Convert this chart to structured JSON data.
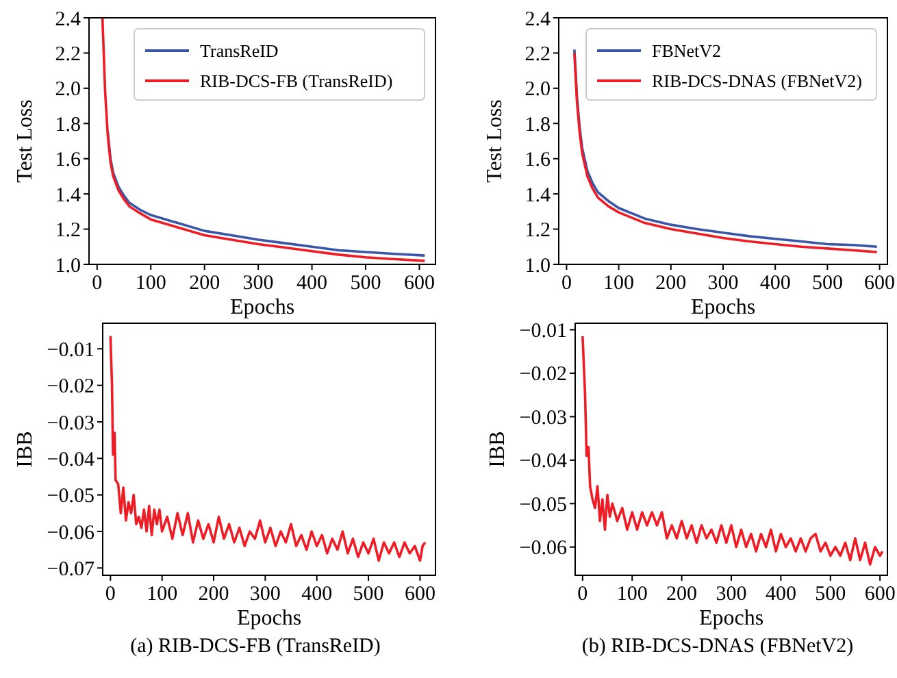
{
  "chart_data": [
    {
      "type": "line",
      "xlabel": "Epochs",
      "ylabel": "Test Loss",
      "xlim": [
        -15,
        630
      ],
      "ylim": [
        1.0,
        2.4
      ],
      "xticks": [
        0,
        100,
        200,
        300,
        400,
        500,
        600
      ],
      "yticks": [
        {
          "value": 1.0,
          "label": "1.0"
        },
        {
          "value": 1.2,
          "label": "1.2"
        },
        {
          "value": 1.4,
          "label": "1.4"
        },
        {
          "value": 1.6,
          "label": "1.6"
        },
        {
          "value": 1.8,
          "label": "1.8"
        },
        {
          "value": 2.0,
          "label": "2.0"
        },
        {
          "value": 2.2,
          "label": "2.2"
        },
        {
          "value": 2.4,
          "label": "2.4"
        }
      ],
      "grid": false,
      "legend": "top right",
      "marker": "none",
      "line_style": "solid",
      "series": [
        {
          "name": "TransReID",
          "color": "#3a56a8",
          "x": [
            20,
            25,
            30,
            40,
            50,
            60,
            80,
            100,
            150,
            200,
            250,
            300,
            350,
            400,
            450,
            500,
            550,
            610
          ],
          "values": [
            1.75,
            1.6,
            1.52,
            1.44,
            1.39,
            1.35,
            1.31,
            1.28,
            1.235,
            1.19,
            1.165,
            1.14,
            1.12,
            1.1,
            1.08,
            1.07,
            1.06,
            1.05
          ]
        },
        {
          "name": "RIB-DCS-FB (TransReID)",
          "color": "#ee1c25",
          "x": [
            10,
            15,
            20,
            25,
            30,
            40,
            50,
            60,
            80,
            100,
            150,
            200,
            250,
            300,
            350,
            400,
            450,
            500,
            550,
            610
          ],
          "values": [
            2.4,
            1.98,
            1.73,
            1.58,
            1.5,
            1.42,
            1.37,
            1.33,
            1.29,
            1.255,
            1.21,
            1.165,
            1.14,
            1.115,
            1.095,
            1.075,
            1.055,
            1.04,
            1.03,
            1.02
          ]
        }
      ]
    },
    {
      "type": "line",
      "xlabel": "Epochs",
      "ylabel": "Test Loss",
      "xlim": [
        -15,
        615
      ],
      "ylim": [
        1.0,
        2.4
      ],
      "xticks": [
        0,
        100,
        200,
        300,
        400,
        500,
        600
      ],
      "yticks": [
        {
          "value": 1.0,
          "label": "1.0"
        },
        {
          "value": 1.2,
          "label": "1.2"
        },
        {
          "value": 1.4,
          "label": "1.4"
        },
        {
          "value": 1.6,
          "label": "1.6"
        },
        {
          "value": 1.8,
          "label": "1.8"
        },
        {
          "value": 2.0,
          "label": "2.0"
        },
        {
          "value": 2.2,
          "label": "2.2"
        },
        {
          "value": 2.4,
          "label": "2.4"
        }
      ],
      "grid": false,
      "legend": "top right",
      "marker": "none",
      "line_style": "solid",
      "series": [
        {
          "name": "FBNetV2",
          "color": "#3a56a8",
          "x": [
            15,
            20,
            25,
            30,
            40,
            50,
            60,
            80,
            100,
            150,
            200,
            250,
            300,
            350,
            400,
            450,
            500,
            550,
            595
          ],
          "values": [
            2.22,
            1.95,
            1.78,
            1.66,
            1.53,
            1.46,
            1.41,
            1.36,
            1.32,
            1.26,
            1.225,
            1.2,
            1.18,
            1.16,
            1.145,
            1.13,
            1.115,
            1.11,
            1.1
          ]
        },
        {
          "name": "RIB-DCS-DNAS (FBNetV2)",
          "color": "#ee1c25",
          "x": [
            15,
            20,
            25,
            30,
            40,
            50,
            60,
            80,
            100,
            150,
            200,
            250,
            300,
            350,
            400,
            450,
            500,
            550,
            595
          ],
          "values": [
            2.2,
            1.92,
            1.75,
            1.63,
            1.5,
            1.43,
            1.38,
            1.33,
            1.295,
            1.235,
            1.2,
            1.175,
            1.15,
            1.13,
            1.115,
            1.1,
            1.09,
            1.08,
            1.07
          ]
        }
      ]
    },
    {
      "type": "line",
      "xlabel": "Epochs",
      "ylabel": "IBB",
      "xlim": [
        -15,
        630
      ],
      "ylim": [
        -0.072,
        -0.003
      ],
      "xticks": [
        0,
        100,
        200,
        300,
        400,
        500,
        600
      ],
      "yticks": [
        {
          "value": -0.07,
          "label": "−0.07"
        },
        {
          "value": -0.06,
          "label": "−0.06"
        },
        {
          "value": -0.05,
          "label": "−0.05"
        },
        {
          "value": -0.04,
          "label": "−0.04"
        },
        {
          "value": -0.03,
          "label": "−0.03"
        },
        {
          "value": -0.02,
          "label": "−0.02"
        },
        {
          "value": -0.01,
          "label": "−0.01"
        }
      ],
      "grid": false,
      "legend": false,
      "marker": "none",
      "line_style": "solid",
      "annotations": [
        "(a) RIB-DCS-FB (TransReID)"
      ],
      "series": [
        {
          "color": "#ee1c25",
          "x": [
            0,
            3,
            5,
            8,
            10,
            15,
            20,
            25,
            30,
            35,
            40,
            45,
            50,
            55,
            60,
            65,
            70,
            75,
            80,
            85,
            90,
            95,
            100,
            110,
            120,
            130,
            140,
            150,
            160,
            170,
            180,
            190,
            200,
            210,
            220,
            230,
            240,
            250,
            260,
            270,
            280,
            290,
            300,
            310,
            320,
            330,
            340,
            350,
            360,
            370,
            380,
            390,
            400,
            410,
            420,
            430,
            440,
            450,
            460,
            470,
            480,
            490,
            500,
            510,
            520,
            530,
            540,
            550,
            560,
            570,
            580,
            590,
            600,
            605,
            610
          ],
          "values": [
            -0.0065,
            -0.02,
            -0.039,
            -0.033,
            -0.046,
            -0.047,
            -0.055,
            -0.048,
            -0.057,
            -0.052,
            -0.055,
            -0.05,
            -0.058,
            -0.056,
            -0.059,
            -0.054,
            -0.06,
            -0.053,
            -0.061,
            -0.054,
            -0.058,
            -0.054,
            -0.06,
            -0.056,
            -0.062,
            -0.055,
            -0.061,
            -0.055,
            -0.063,
            -0.057,
            -0.062,
            -0.058,
            -0.063,
            -0.056,
            -0.062,
            -0.058,
            -0.063,
            -0.059,
            -0.064,
            -0.06,
            -0.062,
            -0.057,
            -0.063,
            -0.059,
            -0.064,
            -0.06,
            -0.063,
            -0.058,
            -0.064,
            -0.061,
            -0.065,
            -0.06,
            -0.064,
            -0.061,
            -0.066,
            -0.062,
            -0.065,
            -0.06,
            -0.066,
            -0.062,
            -0.067,
            -0.063,
            -0.066,
            -0.062,
            -0.068,
            -0.063,
            -0.066,
            -0.063,
            -0.067,
            -0.063,
            -0.066,
            -0.064,
            -0.068,
            -0.064,
            -0.063
          ]
        }
      ]
    },
    {
      "type": "line",
      "xlabel": "Epochs",
      "ylabel": "IBB",
      "xlim": [
        -15,
        615
      ],
      "ylim": [
        -0.0665,
        -0.0085
      ],
      "xticks": [
        0,
        100,
        200,
        300,
        400,
        500,
        600
      ],
      "yticks": [
        {
          "value": -0.06,
          "label": "−0.06"
        },
        {
          "value": -0.05,
          "label": "−0.05"
        },
        {
          "value": -0.04,
          "label": "−0.04"
        },
        {
          "value": -0.03,
          "label": "−0.03"
        },
        {
          "value": -0.02,
          "label": "−0.02"
        },
        {
          "value": -0.01,
          "label": "−0.01"
        }
      ],
      "grid": false,
      "legend": false,
      "marker": "none",
      "line_style": "solid",
      "annotations": [
        "(b) RIB-DCS-DNAS (FBNetV2)"
      ],
      "series": [
        {
          "color": "#ee1c25",
          "x": [
            0,
            5,
            8,
            12,
            15,
            20,
            25,
            30,
            35,
            40,
            45,
            50,
            55,
            60,
            70,
            80,
            90,
            100,
            110,
            120,
            130,
            140,
            150,
            160,
            170,
            180,
            190,
            200,
            210,
            220,
            230,
            240,
            250,
            260,
            270,
            280,
            290,
            300,
            310,
            320,
            330,
            340,
            350,
            360,
            370,
            380,
            390,
            400,
            410,
            420,
            430,
            440,
            450,
            460,
            470,
            480,
            490,
            500,
            510,
            520,
            530,
            540,
            550,
            560,
            570,
            580,
            590,
            600,
            605
          ],
          "values": [
            -0.0115,
            -0.025,
            -0.039,
            -0.037,
            -0.046,
            -0.049,
            -0.051,
            -0.046,
            -0.054,
            -0.049,
            -0.056,
            -0.048,
            -0.053,
            -0.05,
            -0.054,
            -0.051,
            -0.056,
            -0.052,
            -0.056,
            -0.052,
            -0.055,
            -0.052,
            -0.055,
            -0.052,
            -0.058,
            -0.055,
            -0.058,
            -0.054,
            -0.058,
            -0.055,
            -0.059,
            -0.055,
            -0.058,
            -0.056,
            -0.059,
            -0.055,
            -0.059,
            -0.055,
            -0.06,
            -0.056,
            -0.06,
            -0.057,
            -0.061,
            -0.057,
            -0.06,
            -0.056,
            -0.061,
            -0.057,
            -0.06,
            -0.058,
            -0.061,
            -0.058,
            -0.061,
            -0.058,
            -0.057,
            -0.061,
            -0.059,
            -0.062,
            -0.06,
            -0.062,
            -0.059,
            -0.063,
            -0.058,
            -0.063,
            -0.059,
            -0.064,
            -0.06,
            -0.062,
            -0.061
          ]
        }
      ]
    }
  ]
}
